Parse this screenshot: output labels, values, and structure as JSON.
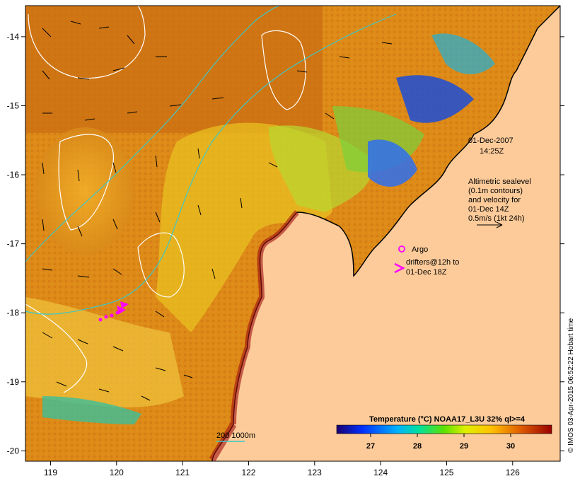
{
  "map": {
    "date_label": "01-Dec-2007",
    "time_label": "14:25Z",
    "legend_altimetry": [
      "Altimetric sealevel",
      "(0.1m contours)",
      "and velocity for",
      "01-Dec 14Z",
      "0.5m/s (1kt 24h)"
    ],
    "argo_label": "Argo",
    "drifters_label_1": "drifters@12h to",
    "drifters_label_2": "01-Dec 18Z",
    "depth_legend": "200  1000m",
    "colorbar_title": "Temperature (°C) NOAA17_L3U 32% ql>=4",
    "colorbar_ticks": [
      "27",
      "28",
      "29",
      "30"
    ],
    "credit": "© IMOS 03-Apr-2015 06:52:22 Hobart time",
    "lon_ticks": [
      "119",
      "120",
      "121",
      "122",
      "123",
      "124",
      "125",
      "126"
    ],
    "lat_ticks": [
      "-14",
      "-15",
      "-16",
      "-17",
      "-18",
      "-19",
      "-20"
    ],
    "colors": {
      "land": "#fdcb9a",
      "ocean_hot": "#d4760e",
      "ocean_mid": "#f2a817",
      "ocean_cool": "#c7e03a",
      "drifter": "#ff00ff",
      "isobath": "#3cc8c8"
    }
  }
}
